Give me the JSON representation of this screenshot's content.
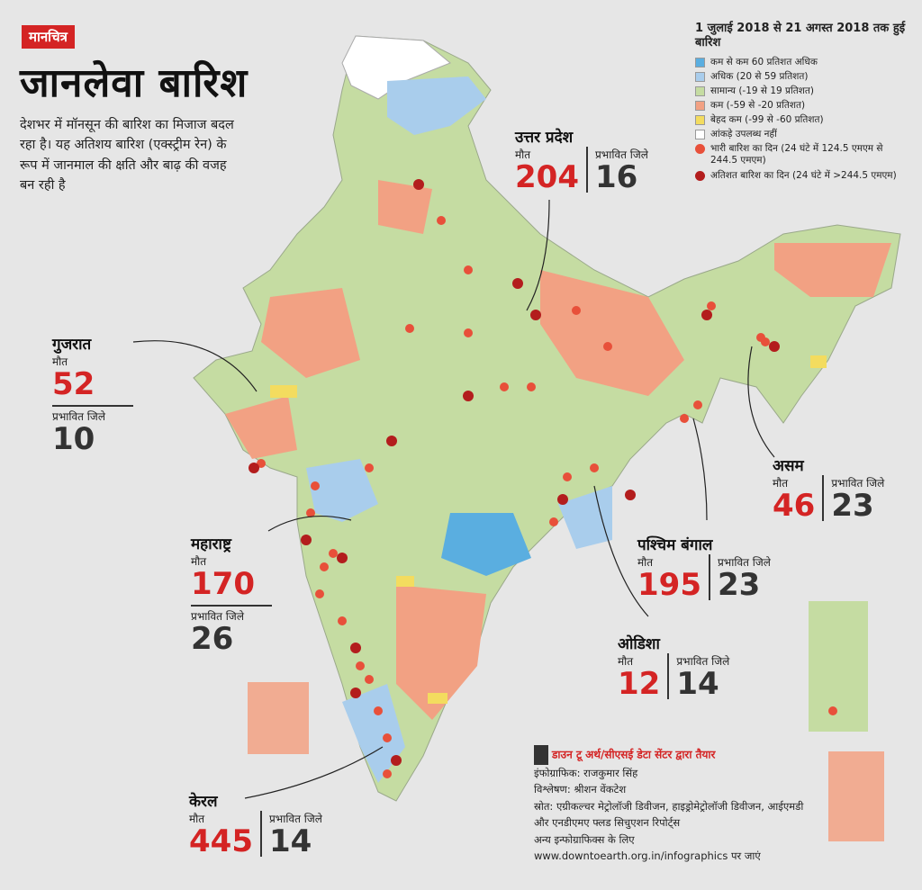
{
  "header": {
    "tag": "मानचित्र",
    "title": "जानलेवा बारिश",
    "intro": "देशभर में मॉनसून की बारिश का मिजाज बदल रहा है। यह अतिशय बारिश (एक्स्ट्रीम रेन) के रूप में जानमाल की क्षति और बाढ़ की वजह बन रही है"
  },
  "legend": {
    "title": "1 जुलाई 2018 से 21 अगस्त 2018 तक हुई बारिश",
    "items": [
      {
        "label": "कम से कम 60 प्रतिशत अधिक",
        "color": "#5aaee0",
        "shape": "square"
      },
      {
        "label": "अधिक (20 से 59 प्रतिशत)",
        "color": "#a9cdec",
        "shape": "square"
      },
      {
        "label": "सामान्य (-19 से 19 प्रतिशत)",
        "color": "#c5dca2",
        "shape": "square"
      },
      {
        "label": "कम (-59 से -20 प्रतिशत)",
        "color": "#f2a183",
        "shape": "square"
      },
      {
        "label": "बेहद कम (-99 से -60 प्रतिशत)",
        "color": "#f3dc5f",
        "shape": "square"
      },
      {
        "label": "आंकड़े उपलब्ध नहीं",
        "color": "#ffffff",
        "shape": "square"
      },
      {
        "label": "भारी बारिश का दिन (24 घंटे में 124.5 एमएम से 244.5 एमएम)",
        "color": "#e8503a",
        "shape": "dot"
      },
      {
        "label": "अतिशत बारिश का दिन (24 घंटे में >244.5 एमएम)",
        "color": "#b31d1d",
        "shape": "dot"
      }
    ]
  },
  "labels": {
    "deaths": "मौत",
    "districts": "प्रभावित जिले"
  },
  "states": [
    {
      "key": "up",
      "name": "उत्तर प्रदेश",
      "deaths": "204",
      "districts": "16"
    },
    {
      "key": "gujarat",
      "name": "गुजरात",
      "deaths": "52",
      "districts": "10"
    },
    {
      "key": "maharashtra",
      "name": "महाराष्ट्र",
      "deaths": "170",
      "districts": "26"
    },
    {
      "key": "kerala",
      "name": "केरल",
      "deaths": "445",
      "districts": "14"
    },
    {
      "key": "assam",
      "name": "असम",
      "deaths": "46",
      "districts": "23"
    },
    {
      "key": "wb",
      "name": "पश्चिम बंगाल",
      "deaths": "195",
      "districts": "23"
    },
    {
      "key": "odisha",
      "name": "ओडिशा",
      "deaths": "12",
      "districts": "14"
    }
  ],
  "credits": {
    "prepared": "डाउन टू अर्थ/सीएसई डेटा सेंटर द्वारा तैयार",
    "infographic": "इंफोग्राफिक: राजकुमार सिंह",
    "analysis": "विश्लेषण: श्रीशन वेंकटेश",
    "source": "स्रोत: एग्रीकल्चर मेट्रोलॉजी डिवीजन, हाइड्रोमेट्रोलॉजी डिवीजन, आईएमडी और एनडीएमए फ्लड सिचुएशन रिपोर्ट्स",
    "more": "अन्य इन्फोग्राफिक्स के लिए www.downtoearth.org.in/infographics पर जाएं"
  }
}
